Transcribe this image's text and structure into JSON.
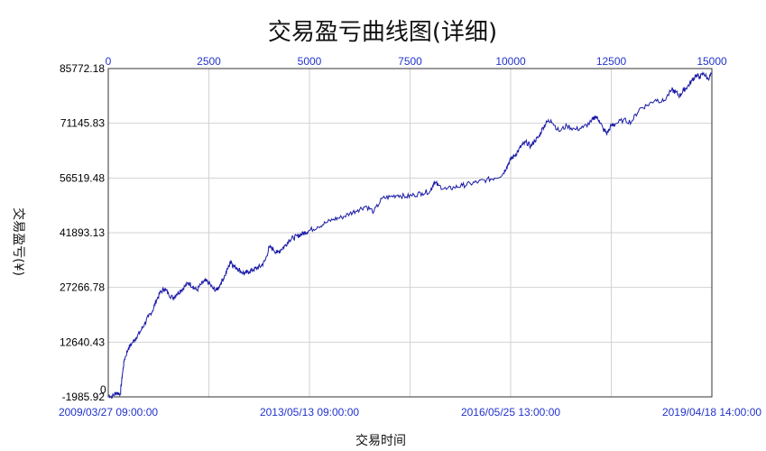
{
  "chart_data": {
    "type": "line",
    "title": "交易盈亏曲线图(详细)",
    "ylabel": "交易盈亏(¥)",
    "xlabel": "交易时间",
    "yticks": [
      "85772.18",
      "71145.83",
      "56519.48",
      "41893.13",
      "27266.78",
      "12640.43",
      "-1985.92"
    ],
    "zero_label": "0",
    "ylim": [
      -1985.92,
      85772.18
    ],
    "top_ticks": [
      "0",
      "2500",
      "5000",
      "7500",
      "10000",
      "12500",
      "15000"
    ],
    "xlim": [
      0,
      15000
    ],
    "date_ticks": [
      "2009/03/27 09:00:00",
      "2013/05/13 09:00:00",
      "2016/05/25 13:00:00",
      "2019/04/18 14:00:00"
    ],
    "grid": true,
    "line_color": "#1a1aa6",
    "series": [
      {
        "x": [
          0,
          100,
          200,
          300,
          350,
          400,
          500,
          600,
          700,
          800,
          900,
          1000,
          1100,
          1200,
          1300,
          1400,
          1500,
          1600,
          1700,
          1800,
          1900,
          2000,
          2100,
          2200,
          2300,
          2400,
          2500,
          2600,
          2700,
          2800,
          2900,
          3000,
          3050,
          3100,
          3200,
          3300,
          3400,
          3500,
          3600,
          3700,
          3800,
          3900,
          4000,
          4100,
          4200,
          4300,
          4400,
          4500,
          4600,
          4700,
          4800,
          4900,
          5000,
          5200,
          5400,
          5600,
          5800,
          6000,
          6200,
          6400,
          6600,
          6800,
          7000,
          7200,
          7400,
          7600,
          7800,
          8000,
          8100,
          8200,
          8400,
          8600,
          8800,
          9000,
          9200,
          9400,
          9600,
          9800,
          9900,
          10000,
          10100,
          10200,
          10300,
          10400,
          10500,
          10600,
          10700,
          10800,
          10900,
          11000,
          11200,
          11400,
          11600,
          11800,
          12000,
          12100,
          12200,
          12300,
          12400,
          12500,
          12600,
          12800,
          13000,
          13200,
          13400,
          13600,
          13800,
          14000,
          14100,
          14200,
          14300,
          14400,
          14500,
          14600,
          14700,
          14800,
          14900,
          15000
        ],
        "values": [
          -1500,
          -1900,
          -800,
          -1200,
          4000,
          8000,
          11000,
          12500,
          14000,
          15500,
          17500,
          19500,
          21000,
          24000,
          26000,
          27000,
          25500,
          24500,
          25500,
          26500,
          27500,
          28500,
          27500,
          26500,
          28000,
          29000,
          28500,
          27000,
          26500,
          28500,
          30500,
          33000,
          34500,
          33000,
          32500,
          31500,
          31000,
          31500,
          32000,
          32500,
          33000,
          34500,
          38000,
          37500,
          36500,
          37500,
          38500,
          40000,
          40500,
          41000,
          41500,
          42000,
          42500,
          43500,
          44500,
          45500,
          46000,
          47000,
          48000,
          49000,
          47500,
          51000,
          51500,
          52000,
          51500,
          52000,
          52500,
          53000,
          55500,
          54500,
          53500,
          54000,
          54500,
          55000,
          55500,
          56000,
          56500,
          57500,
          59500,
          61500,
          62500,
          64000,
          65500,
          66000,
          65000,
          66500,
          67500,
          70000,
          71500,
          72000,
          69000,
          70500,
          69500,
          70000,
          71500,
          73000,
          72000,
          69500,
          68500,
          70500,
          71000,
          72000,
          71500,
          75000,
          76000,
          77500,
          77000,
          80000,
          79500,
          78500,
          80000,
          81000,
          82500,
          84000,
          83500,
          84500,
          83000,
          84500
        ]
      }
    ]
  }
}
